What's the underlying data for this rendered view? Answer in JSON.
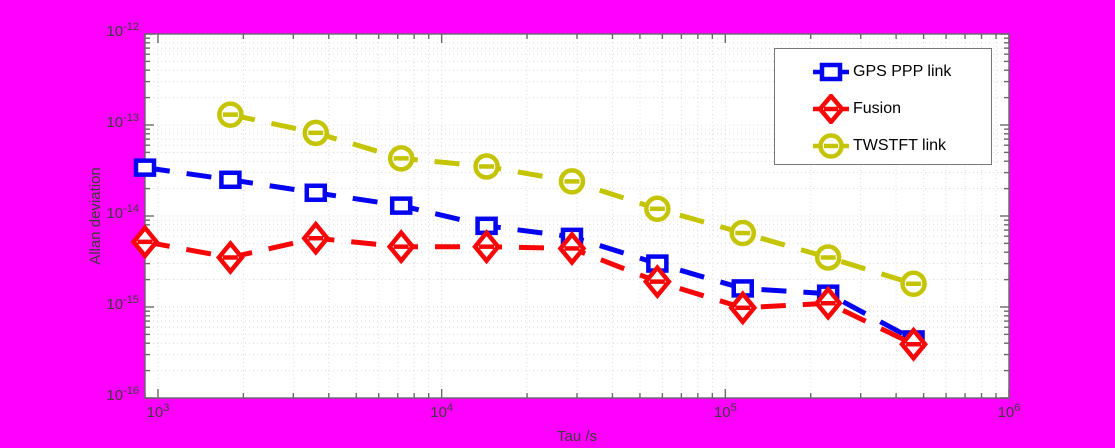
{
  "chart_data": {
    "type": "line",
    "title": "",
    "xlabel": "Tau /s",
    "ylabel": "Allan deviation",
    "x_scale": "log",
    "y_scale": "log",
    "xlim": [
      900,
      1000000
    ],
    "ylim": [
      1e-16,
      1e-12
    ],
    "x_tick_exponents": [
      3,
      4,
      5,
      6
    ],
    "y_tick_exponents": [
      -12,
      -13,
      -14,
      -15,
      -16
    ],
    "grid": "major and minor log grid, dotted",
    "legend_position": "top-right inside plot",
    "line_style": "dashed",
    "series": [
      {
        "name": "GPS PPP link",
        "color": "#0404f0",
        "marker": "square",
        "x": [
          900,
          1800,
          3600,
          7200,
          14400,
          28800,
          57600,
          115200,
          230400,
          460800
        ],
        "y": [
          3.4e-14,
          2.5e-14,
          1.8e-14,
          1.3e-14,
          7.8e-15,
          5.9e-15,
          3e-15,
          1.6e-15,
          1.4e-15,
          4.4e-16
        ]
      },
      {
        "name": "Fusion",
        "color": "#f60606",
        "marker": "diamond",
        "x": [
          900,
          1800,
          3600,
          7200,
          14400,
          28800,
          57600,
          115200,
          230400,
          460800
        ],
        "y": [
          5.2e-15,
          3.5e-15,
          5.7e-15,
          4.6e-15,
          4.6e-15,
          4.4e-15,
          1.9e-15,
          9.8e-16,
          1.1e-15,
          3.9e-16
        ]
      },
      {
        "name": "TWSTFT link",
        "color": "#c4c400",
        "marker": "circle",
        "x": [
          1800,
          3600,
          7200,
          14400,
          28800,
          57600,
          115200,
          230400,
          460800
        ],
        "y": [
          1.3e-13,
          8.2e-14,
          4.3e-14,
          3.5e-14,
          2.4e-14,
          1.2e-14,
          6.5e-15,
          3.5e-15,
          1.8e-15
        ]
      }
    ],
    "colors": {
      "figure_background": "#ff00ff",
      "plot_background": "#ffffff",
      "axis_box": "#686868",
      "tick_label": "#3c3c3c",
      "grid": "#dcdcdc",
      "legend_border": "#777777",
      "legend_background": "#ffffff",
      "legend_text": "#000000"
    }
  }
}
